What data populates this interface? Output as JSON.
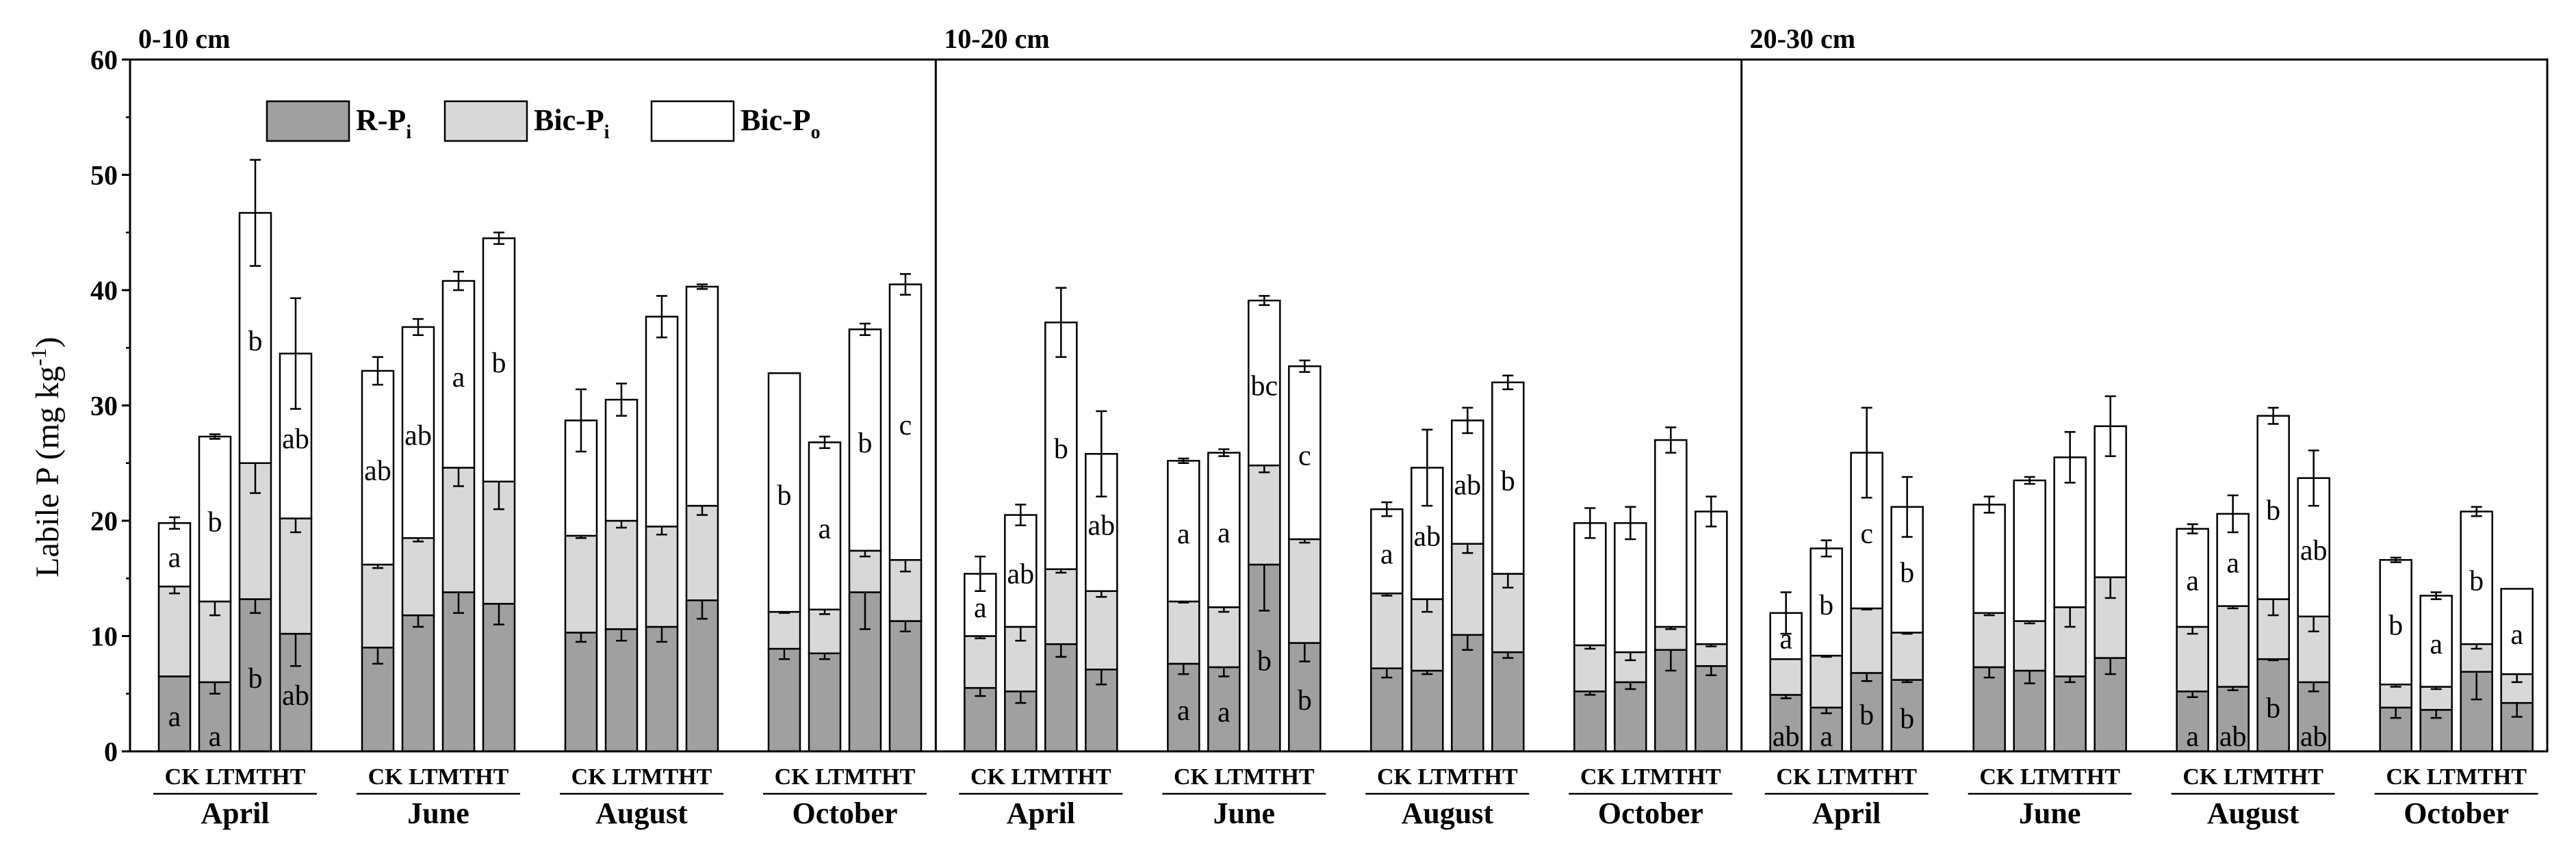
{
  "chart_data": {
    "type": "bar",
    "subtype": "stacked",
    "ylabel": "Labile P (mg kg",
    "ylabel_sup": "-1",
    "ylabel_close": ")",
    "ylim": [
      0,
      60
    ],
    "yticks": [
      0,
      10,
      20,
      30,
      40,
      50,
      60
    ],
    "legend": [
      {
        "key": "rpi",
        "base": "R-P",
        "sub": "i",
        "color": "#a0a0a0"
      },
      {
        "key": "bici",
        "base": "Bic-P",
        "sub": "i",
        "color": "#d8d8d8"
      },
      {
        "key": "bico",
        "base": "Bic-P",
        "sub": "o",
        "color": "#ffffff"
      }
    ],
    "treatment_labels": "CK LTMTHT",
    "treatments": [
      "CK",
      "LT",
      "MT",
      "HT"
    ],
    "panels": [
      {
        "title": "0-10 cm",
        "months": [
          {
            "name": "April",
            "bars": [
              {
                "rpi": 6.5,
                "rpi_err": 0,
                "bici": 7.8,
                "bici_err": 0.6,
                "bico": 5.5,
                "bico_err": 0.5,
                "rpi_lab": "a",
                "bici_lab": "",
                "bico_lab": "a"
              },
              {
                "rpi": 6.0,
                "rpi_err": 1.0,
                "bici": 7.0,
                "bici_err": 1.2,
                "bico": 14.3,
                "bico_err": 0.2,
                "rpi_lab": "a",
                "bici_lab": "",
                "bico_lab": "b"
              },
              {
                "rpi": 13.2,
                "rpi_err": 1.2,
                "bici": 11.8,
                "bici_err": 2.6,
                "bico": 21.7,
                "bico_err": 4.6,
                "rpi_lab": "b",
                "bici_lab": "",
                "bico_lab": "b"
              },
              {
                "rpi": 10.2,
                "rpi_err": 2.8,
                "bici": 10.0,
                "bici_err": 1.2,
                "bico": 14.3,
                "bico_err": 4.8,
                "rpi_lab": "ab",
                "bici_lab": "",
                "bico_lab": "ab"
              }
            ]
          },
          {
            "name": "June",
            "bars": [
              {
                "rpi": 9.0,
                "rpi_err": 1.4,
                "bici": 7.2,
                "bici_err": 0.3,
                "bico": 16.8,
                "bico_err": 1.2,
                "rpi_lab": "",
                "bici_lab": "",
                "bico_lab": "ab"
              },
              {
                "rpi": 11.8,
                "rpi_err": 1.0,
                "bici": 6.7,
                "bici_err": 0.3,
                "bico": 18.3,
                "bico_err": 0.7,
                "rpi_lab": "",
                "bici_lab": "",
                "bico_lab": "ab"
              },
              {
                "rpi": 13.8,
                "rpi_err": 1.8,
                "bici": 10.8,
                "bici_err": 1.6,
                "bico": 16.2,
                "bico_err": 0.8,
                "rpi_lab": "",
                "bici_lab": "",
                "bico_lab": "a"
              },
              {
                "rpi": 12.8,
                "rpi_err": 1.8,
                "bici": 10.6,
                "bici_err": 2.4,
                "bico": 21.1,
                "bico_err": 0.5,
                "rpi_lab": "",
                "bici_lab": "",
                "bico_lab": "b"
              }
            ]
          },
          {
            "name": "August",
            "bars": [
              {
                "rpi": 10.3,
                "rpi_err": 0.8,
                "bici": 8.4,
                "bici_err": 0.2,
                "bico": 10.0,
                "bico_err": 2.7,
                "rpi_lab": "",
                "bici_lab": "",
                "bico_lab": ""
              },
              {
                "rpi": 10.6,
                "rpi_err": 1.0,
                "bici": 9.4,
                "bici_err": 0.6,
                "bico": 10.5,
                "bico_err": 1.4,
                "rpi_lab": "",
                "bici_lab": "",
                "bico_lab": ""
              },
              {
                "rpi": 10.8,
                "rpi_err": 1.3,
                "bici": 8.7,
                "bici_err": 0.7,
                "bico": 18.2,
                "bico_err": 1.8,
                "rpi_lab": "",
                "bici_lab": "",
                "bico_lab": ""
              },
              {
                "rpi": 13.1,
                "rpi_err": 1.6,
                "bici": 8.2,
                "bici_err": 0.8,
                "bico": 19.0,
                "bico_err": 0.2,
                "rpi_lab": "",
                "bici_lab": "",
                "bico_lab": ""
              }
            ]
          },
          {
            "name": "October",
            "bars": [
              {
                "rpi": 8.9,
                "rpi_err": 0.9,
                "bici": 3.2,
                "bici_err": 0.1,
                "bico": 20.7,
                "bico_err": 0,
                "rpi_lab": "",
                "bici_lab": "",
                "bico_lab": "b"
              },
              {
                "rpi": 8.5,
                "rpi_err": 0.5,
                "bici": 3.8,
                "bici_err": 0.4,
                "bico": 14.5,
                "bico_err": 0.5,
                "rpi_lab": "",
                "bici_lab": "",
                "bico_lab": "a"
              },
              {
                "rpi": 13.8,
                "rpi_err": 3.2,
                "bici": 3.6,
                "bici_err": 0.5,
                "bico": 19.2,
                "bico_err": 0.5,
                "rpi_lab": "",
                "bici_lab": "",
                "bico_lab": "b"
              },
              {
                "rpi": 11.3,
                "rpi_err": 0.9,
                "bici": 5.3,
                "bici_err": 1.0,
                "bico": 23.9,
                "bico_err": 0.9,
                "rpi_lab": "",
                "bici_lab": "",
                "bico_lab": "c"
              }
            ]
          }
        ]
      },
      {
        "title": "10-20 cm",
        "months": [
          {
            "name": "April",
            "bars": [
              {
                "rpi": 5.5,
                "rpi_err": 0.7,
                "bici": 4.5,
                "bici_err": 0.2,
                "bico": 5.4,
                "bico_err": 1.5,
                "rpi_lab": "",
                "bici_lab": "",
                "bico_lab": "a"
              },
              {
                "rpi": 5.2,
                "rpi_err": 1.0,
                "bici": 5.6,
                "bici_err": 1.2,
                "bico": 9.7,
                "bico_err": 0.9,
                "rpi_lab": "",
                "bici_lab": "",
                "bico_lab": "ab"
              },
              {
                "rpi": 9.3,
                "rpi_err": 1.1,
                "bici": 6.5,
                "bici_err": 0.3,
                "bico": 21.4,
                "bico_err": 3.0,
                "rpi_lab": "",
                "bici_lab": "",
                "bico_lab": "b"
              },
              {
                "rpi": 7.1,
                "rpi_err": 1.3,
                "bici": 6.8,
                "bici_err": 0.5,
                "bico": 11.9,
                "bico_err": 3.7,
                "rpi_lab": "",
                "bici_lab": "",
                "bico_lab": "ab"
              }
            ]
          },
          {
            "name": "June",
            "bars": [
              {
                "rpi": 7.6,
                "rpi_err": 0.9,
                "bici": 5.4,
                "bici_err": 0.1,
                "bico": 12.2,
                "bico_err": 0.2,
                "rpi_lab": "a",
                "bici_lab": "",
                "bico_lab": "a"
              },
              {
                "rpi": 7.3,
                "rpi_err": 0.8,
                "bici": 5.2,
                "bici_err": 0.4,
                "bico": 13.4,
                "bico_err": 0.3,
                "rpi_lab": "a",
                "bici_lab": "",
                "bico_lab": "a"
              },
              {
                "rpi": 16.2,
                "rpi_err": 4.0,
                "bici": 8.6,
                "bici_err": 0.6,
                "bico": 14.3,
                "bico_err": 0.4,
                "rpi_lab": "b",
                "bici_lab": "",
                "bico_lab": "bc"
              },
              {
                "rpi": 9.4,
                "rpi_err": 1.6,
                "bici": 9.0,
                "bici_err": 0.3,
                "bico": 15.0,
                "bico_err": 0.5,
                "rpi_lab": "b",
                "bici_lab": "",
                "bico_lab": "c"
              }
            ]
          },
          {
            "name": "August",
            "bars": [
              {
                "rpi": 7.2,
                "rpi_err": 0.8,
                "bici": 6.5,
                "bici_err": 0.2,
                "bico": 7.3,
                "bico_err": 0.6,
                "rpi_lab": "",
                "bici_lab": "",
                "bico_lab": "a"
              },
              {
                "rpi": 7.0,
                "rpi_err": 0.3,
                "bici": 6.2,
                "bici_err": 1.1,
                "bico": 11.4,
                "bico_err": 3.3,
                "rpi_lab": "",
                "bici_lab": "",
                "bico_lab": "ab"
              },
              {
                "rpi": 10.1,
                "rpi_err": 1.3,
                "bici": 7.9,
                "bici_err": 0.8,
                "bico": 10.7,
                "bico_err": 1.1,
                "rpi_lab": "",
                "bici_lab": "",
                "bico_lab": "ab"
              },
              {
                "rpi": 8.6,
                "rpi_err": 0.5,
                "bici": 6.8,
                "bici_err": 1.2,
                "bico": 16.6,
                "bico_err": 0.6,
                "rpi_lab": "",
                "bici_lab": "",
                "bico_lab": "b"
              }
            ]
          },
          {
            "name": "October",
            "bars": [
              {
                "rpi": 5.2,
                "rpi_err": 0.3,
                "bici": 4.0,
                "bici_err": 0.3,
                "bico": 10.6,
                "bico_err": 1.3,
                "rpi_lab": "",
                "bici_lab": "",
                "bico_lab": ""
              },
              {
                "rpi": 6.0,
                "rpi_err": 0.6,
                "bici": 2.6,
                "bici_err": 0.7,
                "bico": 11.2,
                "bico_err": 1.4,
                "rpi_lab": "",
                "bici_lab": "",
                "bico_lab": ""
              },
              {
                "rpi": 8.8,
                "rpi_err": 1.8,
                "bici": 2.0,
                "bici_err": 0.2,
                "bico": 16.2,
                "bico_err": 1.1,
                "rpi_lab": "",
                "bici_lab": "",
                "bico_lab": ""
              },
              {
                "rpi": 7.4,
                "rpi_err": 0.8,
                "bici": 1.9,
                "bici_err": 0.2,
                "bico": 11.5,
                "bico_err": 1.3,
                "rpi_lab": "",
                "bici_lab": "",
                "bico_lab": ""
              }
            ]
          }
        ]
      },
      {
        "title": "20-30 cm",
        "months": [
          {
            "name": "April",
            "bars": [
              {
                "rpi": 4.9,
                "rpi_err": 0.3,
                "bici": 3.1,
                "bici_err": 0,
                "bico": 4.0,
                "bico_err": 1.8,
                "rpi_lab": "ab",
                "bici_lab": "",
                "bico_lab": "a"
              },
              {
                "rpi": 3.8,
                "rpi_err": 0.5,
                "bici": 4.5,
                "bici_err": 0.1,
                "bico": 9.3,
                "bico_err": 0.7,
                "rpi_lab": "a",
                "bici_lab": "",
                "bico_lab": "b"
              },
              {
                "rpi": 6.8,
                "rpi_err": 0.7,
                "bici": 5.6,
                "bici_err": 0.1,
                "bico": 13.5,
                "bico_err": 3.9,
                "rpi_lab": "b",
                "bici_lab": "",
                "bico_lab": "c"
              },
              {
                "rpi": 6.2,
                "rpi_err": 0.2,
                "bici": 4.1,
                "bici_err": 0.1,
                "bico": 10.9,
                "bico_err": 2.6,
                "rpi_lab": "b",
                "bici_lab": "",
                "bico_lab": "b"
              }
            ]
          },
          {
            "name": "June",
            "bars": [
              {
                "rpi": 7.3,
                "rpi_err": 0.9,
                "bici": 4.7,
                "bici_err": 0.2,
                "bico": 9.4,
                "bico_err": 0.7,
                "rpi_lab": "",
                "bici_lab": "",
                "bico_lab": ""
              },
              {
                "rpi": 7.0,
                "rpi_err": 1.1,
                "bici": 4.3,
                "bici_err": 0.2,
                "bico": 12.2,
                "bico_err": 0.3,
                "rpi_lab": "",
                "bici_lab": "",
                "bico_lab": ""
              },
              {
                "rpi": 6.5,
                "rpi_err": 0.5,
                "bici": 6.0,
                "bici_err": 1.7,
                "bico": 13.0,
                "bico_err": 2.2,
                "rpi_lab": "",
                "bici_lab": "",
                "bico_lab": ""
              },
              {
                "rpi": 8.1,
                "rpi_err": 1.4,
                "bici": 7.0,
                "bici_err": 1.8,
                "bico": 13.1,
                "bico_err": 2.6,
                "rpi_lab": "",
                "bici_lab": "",
                "bico_lab": ""
              }
            ]
          },
          {
            "name": "August",
            "bars": [
              {
                "rpi": 5.2,
                "rpi_err": 0.5,
                "bici": 5.6,
                "bici_err": 0.6,
                "bico": 8.5,
                "bico_err": 0.4,
                "rpi_lab": "a",
                "bici_lab": "",
                "bico_lab": "a"
              },
              {
                "rpi": 5.6,
                "rpi_err": 0.3,
                "bici": 7.0,
                "bici_err": 0.2,
                "bico": 8.0,
                "bico_err": 1.6,
                "rpi_lab": "ab",
                "bici_lab": "",
                "bico_lab": "a"
              },
              {
                "rpi": 8.0,
                "rpi_err": 0.1,
                "bici": 5.2,
                "bici_err": 1.4,
                "bico": 15.9,
                "bico_err": 0.7,
                "rpi_lab": "b",
                "bici_lab": "",
                "bico_lab": "b"
              },
              {
                "rpi": 6.0,
                "rpi_err": 0.8,
                "bici": 5.7,
                "bici_err": 1.3,
                "bico": 12.0,
                "bico_err": 2.4,
                "rpi_lab": "ab",
                "bici_lab": "",
                "bico_lab": "ab"
              }
            ]
          },
          {
            "name": "October",
            "bars": [
              {
                "rpi": 3.8,
                "rpi_err": 0.9,
                "bici": 2.0,
                "bici_err": 0.2,
                "bico": 10.8,
                "bico_err": 0.2,
                "rpi_lab": "",
                "bici_lab": "",
                "bico_lab": "b"
              },
              {
                "rpi": 3.6,
                "rpi_err": 0.7,
                "bici": 2.0,
                "bici_err": 0.2,
                "bico": 7.9,
                "bico_err": 0.3,
                "rpi_lab": "",
                "bici_lab": "",
                "bico_lab": "a"
              },
              {
                "rpi": 6.9,
                "rpi_err": 2.4,
                "bici": 2.4,
                "bici_err": 0.4,
                "bico": 11.5,
                "bico_err": 0.4,
                "rpi_lab": "",
                "bici_lab": "",
                "bico_lab": "b"
              },
              {
                "rpi": 4.2,
                "rpi_err": 1.2,
                "bici": 2.5,
                "bici_err": 0.7,
                "bico": 7.4,
                "bico_err": 0,
                "rpi_lab": "",
                "bici_lab": "",
                "bico_lab": "a"
              }
            ]
          }
        ]
      }
    ]
  }
}
